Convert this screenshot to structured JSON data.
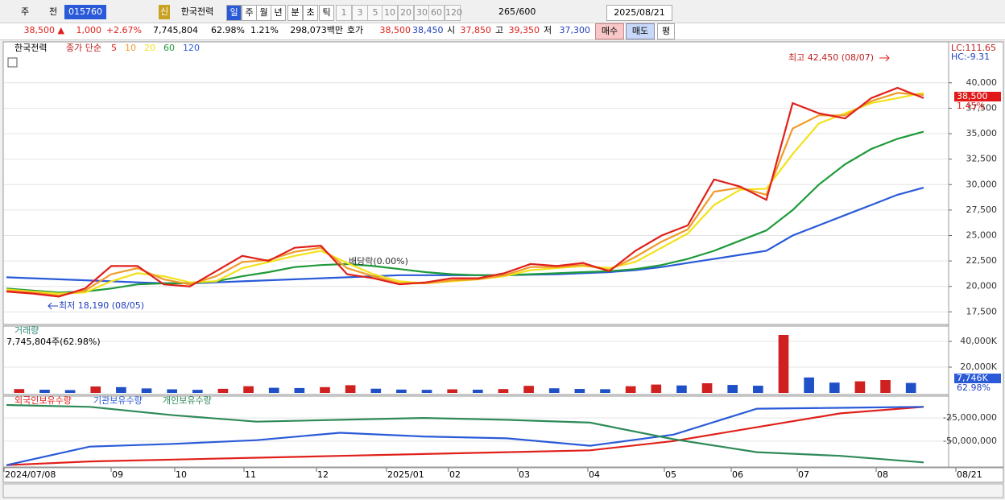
{
  "toolbar": {
    "market": "주",
    "code_type": "전",
    "code": "015760",
    "badge": "신",
    "name": "한국전력",
    "periods": [
      "일",
      "주",
      "월",
      "년",
      "분",
      "초",
      "틱"
    ],
    "intervals": [
      "1",
      "3",
      "5",
      "10",
      "20",
      "30",
      "60",
      "120"
    ],
    "count": "265",
    "max": "/600",
    "date": "2025/08/21"
  },
  "quote": {
    "price": "38,500 ▲",
    "change": "1,000",
    "rate": "+2.67%",
    "volume": "7,745,804",
    "vol_ratio": "62.98%",
    "turnover": "1.21%",
    "amount": "298,073백만",
    "hoga_label": "호가",
    "ask": "38,500",
    "bid": "38,450",
    "open_label": "시",
    "open": "37,850",
    "high_label": "고",
    "high": "39,350",
    "low_label": "저",
    "low": "37,300",
    "buy": "매수",
    "sell": "매도",
    "avg": "평"
  },
  "chart_data": [
    {
      "type": "line",
      "title": "한국전력",
      "subtitle": "종가 단순",
      "ylim": [
        16500,
        43700
      ],
      "yticks": [
        {
          "value": 17500,
          "label": "17,500"
        },
        {
          "value": 20000,
          "label": "20,000"
        },
        {
          "value": 22500,
          "label": "22,500"
        },
        {
          "value": 25000,
          "label": "25,000"
        },
        {
          "value": 27500,
          "label": "27,500"
        },
        {
          "value": 30000,
          "label": "30,000"
        },
        {
          "value": 32500,
          "label": "32,500"
        },
        {
          "value": 35000,
          "label": "35,000"
        },
        {
          "value": 37500,
          "label": "37,500"
        },
        {
          "value": 40000,
          "label": "40,000"
        }
      ],
      "series": [
        {
          "name": "120",
          "color": "#2a5ad8",
          "values": [
            20900,
            20800,
            20700,
            20600,
            20500,
            20400,
            20300,
            20300,
            20400,
            20500,
            20600,
            20700,
            20800,
            20900,
            21000,
            21100,
            21100,
            21100,
            21100,
            21100,
            21150,
            21200,
            21300,
            21400,
            21600,
            21900,
            22300,
            22700,
            23100,
            23500,
            25000,
            26000,
            27000,
            28000,
            29000,
            29700
          ]
        },
        {
          "name": "60",
          "color": "#1e9a3a",
          "values": [
            19800,
            19600,
            19400,
            19500,
            19800,
            20200,
            20300,
            20300,
            20500,
            21000,
            21400,
            21900,
            22100,
            22200,
            22000,
            21700,
            21400,
            21200,
            21100,
            21100,
            21200,
            21300,
            21400,
            21500,
            21700,
            22100,
            22700,
            23500,
            24500,
            25500,
            27500,
            30000,
            32000,
            33500,
            34500,
            35200
          ]
        },
        {
          "name": "20",
          "color": "#f2e21a",
          "values": [
            19700,
            19500,
            19300,
            19400,
            20500,
            21300,
            21000,
            20400,
            20500,
            21800,
            22400,
            23000,
            23500,
            22300,
            21200,
            20500,
            20300,
            20500,
            20700,
            21000,
            21600,
            21800,
            22000,
            21800,
            22400,
            23800,
            25200,
            28000,
            29500,
            29600,
            33000,
            36000,
            37000,
            38000,
            38500,
            39000
          ]
        },
        {
          "name": "10",
          "color": "#f09a2a",
          "values": [
            19600,
            19400,
            19100,
            19600,
            21200,
            21800,
            20700,
            20200,
            21000,
            22400,
            22600,
            23400,
            23800,
            21800,
            21000,
            20300,
            20300,
            20600,
            20700,
            21100,
            21900,
            21900,
            22100,
            21600,
            22900,
            24400,
            25600,
            29300,
            29700,
            29000,
            35500,
            36800,
            36800,
            38200,
            39000,
            38800
          ]
        },
        {
          "name": "5",
          "color": "#e0201a",
          "values": [
            19500,
            19300,
            19000,
            19800,
            22000,
            22000,
            20200,
            20000,
            21500,
            23000,
            22500,
            23800,
            24000,
            21200,
            20800,
            20200,
            20400,
            20800,
            20800,
            21300,
            22200,
            22000,
            22300,
            21500,
            23500,
            25000,
            26000,
            30500,
            29800,
            28500,
            38000,
            37000,
            36500,
            38500,
            39500,
            38500
          ]
        }
      ],
      "annotations": {
        "high": "최고 42,450 (08/07)",
        "low": "최저 18,190 (08/05)",
        "dividend": "배당락(0.00%)",
        "lc": "LC:111.65",
        "hc": "HC:-9.31",
        "last": "38,500",
        "last_rate": "1.45%"
      }
    },
    {
      "type": "bar",
      "title": "거래량",
      "subtitle": "7,745,804주(62.98%)",
      "ylim": [
        0,
        50000
      ],
      "yticks": [
        {
          "value": 20000,
          "label": "20,000K"
        },
        {
          "value": 40000,
          "label": "40,000K"
        }
      ],
      "values": [
        3000,
        2500,
        2200,
        5000,
        4500,
        3500,
        2800,
        2400,
        3200,
        5200,
        4000,
        3800,
        4500,
        6000,
        3300,
        2600,
        2400,
        2800,
        2500,
        3000,
        5500,
        3600,
        3100,
        2900,
        5200,
        6500,
        5800,
        7500,
        6200,
        5600,
        45000,
        12000,
        8000,
        9000,
        10000,
        7746
      ],
      "value_labels": {
        "last": "7,746K",
        "ratio": "62.98%"
      }
    },
    {
      "type": "line",
      "ylim": [
        -78000000,
        -4000000
      ],
      "yticks": [
        {
          "value": -50000000,
          "label": "-50,000,000"
        },
        {
          "value": -25000000,
          "label": "-25,000,000"
        }
      ],
      "series": [
        {
          "name": "외국인보유수량",
          "color": "#e0201a",
          "values": [
            -76000000,
            -72000000,
            -70000000,
            -68000000,
            -66000000,
            -64000000,
            -62000000,
            -60000000,
            -50000000,
            -35000000,
            -20000000,
            -13000000
          ]
        },
        {
          "name": "기관보유수량",
          "color": "#2a5ad8",
          "values": [
            -76000000,
            -56000000,
            -53000000,
            -49000000,
            -41000000,
            -45000000,
            -47000000,
            -55000000,
            -43000000,
            -15000000,
            -14000000,
            -13000000
          ]
        },
        {
          "name": "개인보유수량",
          "color": "#2e8a58",
          "values": [
            -11000000,
            -13000000,
            -22000000,
            -29000000,
            -27000000,
            -25000000,
            -27000000,
            -30000000,
            -48000000,
            -62000000,
            -66000000,
            -73000000
          ]
        }
      ]
    }
  ],
  "xaxis": {
    "labels": [
      "2024/07/08",
      "09",
      "10",
      "11",
      "12",
      "2025/01",
      "02",
      "03",
      "04",
      "05",
      "06",
      "07",
      "08",
      "08/21"
    ]
  }
}
